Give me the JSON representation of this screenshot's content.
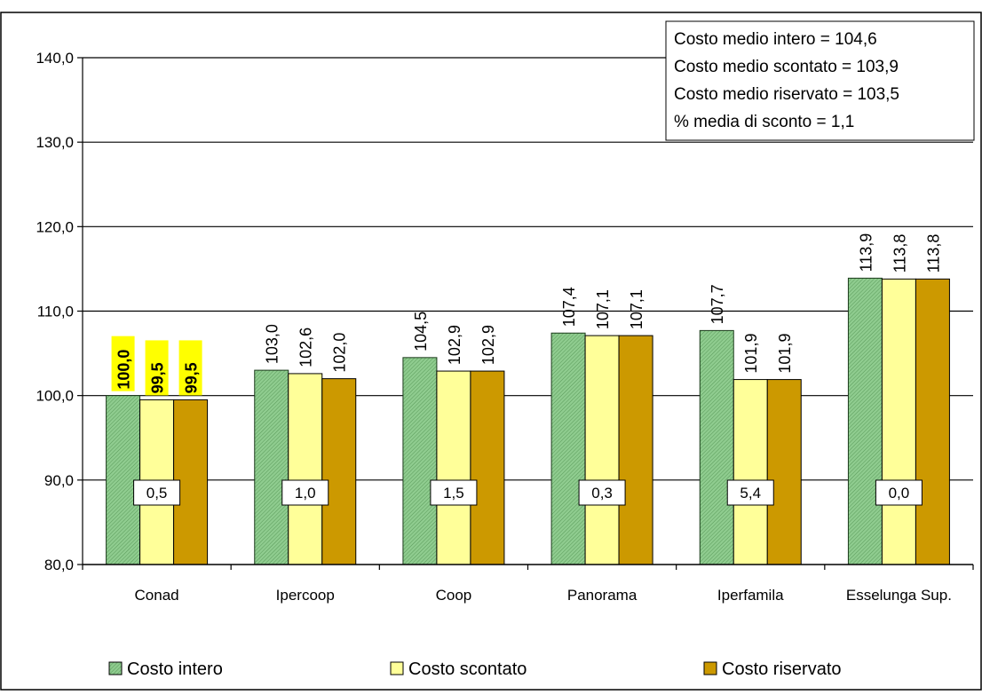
{
  "chart_data": {
    "type": "bar",
    "ylim": [
      80,
      140
    ],
    "y_ticks": [
      "80,0",
      "90,0",
      "100,0",
      "110,0",
      "120,0",
      "130,0",
      "140,0"
    ],
    "y_tick_values": [
      80,
      90,
      100,
      110,
      120,
      130,
      140
    ],
    "grid": true,
    "legend_position": "bottom",
    "categories": [
      "Conad",
      "Ipercoop",
      "Coop",
      "Panorama",
      "Iperfamila",
      "Esselunga Sup."
    ],
    "series": [
      {
        "name": "Costo intero",
        "color": "#7fbf7f",
        "values": [
          100.0,
          103.0,
          104.5,
          107.4,
          107.7,
          113.9
        ],
        "labels": [
          "100,0",
          "103,0",
          "104,5",
          "107,4",
          "107,7",
          "113,9"
        ]
      },
      {
        "name": "Costo scontato",
        "color": "#ffff99",
        "values": [
          99.5,
          102.6,
          102.9,
          107.1,
          101.9,
          113.8
        ],
        "labels": [
          "99,5",
          "102,6",
          "102,9",
          "107,1",
          "101,9",
          "113,8"
        ]
      },
      {
        "name": "Costo riservato",
        "color": "#cc9900",
        "values": [
          99.5,
          102.0,
          102.9,
          107.1,
          101.9,
          113.8
        ],
        "labels": [
          "99,5",
          "102,0",
          "102,9",
          "107,1",
          "101,9",
          "113,8"
        ]
      }
    ],
    "highlighted_category": "Conad",
    "highlight_color": "#ffff00",
    "discount_labels": [
      "0,5",
      "1,0",
      "1,5",
      "0,3",
      "5,4",
      "0,0"
    ],
    "annotations": [
      "Costo medio intero = 104,6",
      "Costo medio scontato = 103,9",
      "Costo medio  riservato = 103,5",
      "% media di sconto = 1,1"
    ]
  }
}
